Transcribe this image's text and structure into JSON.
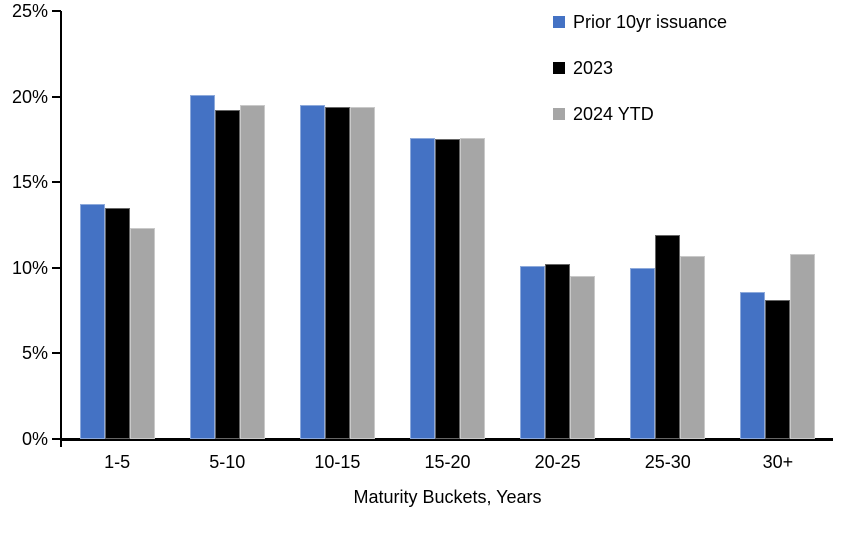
{
  "chart_data": {
    "type": "bar",
    "title": "",
    "xlabel": "Maturity Buckets, Years",
    "ylabel": "",
    "categories": [
      "1-5",
      "5-10",
      "10-15",
      "15-20",
      "20-25",
      "25-30",
      "30+"
    ],
    "series": [
      {
        "name": "Prior 10yr issuance",
        "color": "#4472C4",
        "values": [
          13.7,
          20.1,
          19.5,
          17.6,
          10.1,
          10.0,
          8.6
        ]
      },
      {
        "name": "2023",
        "color": "#000000",
        "values": [
          13.5,
          19.2,
          19.4,
          17.5,
          10.2,
          11.9,
          8.1
        ]
      },
      {
        "name": "2024 YTD",
        "color": "#A6A6A6",
        "values": [
          12.3,
          19.5,
          19.4,
          17.6,
          9.5,
          10.7,
          10.8
        ]
      }
    ],
    "ylim": [
      0,
      25
    ],
    "ytick_step": 5,
    "ytick_labels": [
      "0%",
      "5%",
      "10%",
      "15%",
      "20%",
      "25%"
    ],
    "grid": false,
    "legend_position": "top-right",
    "axis_color": "#000000",
    "background_color": "#FFFFFF"
  }
}
